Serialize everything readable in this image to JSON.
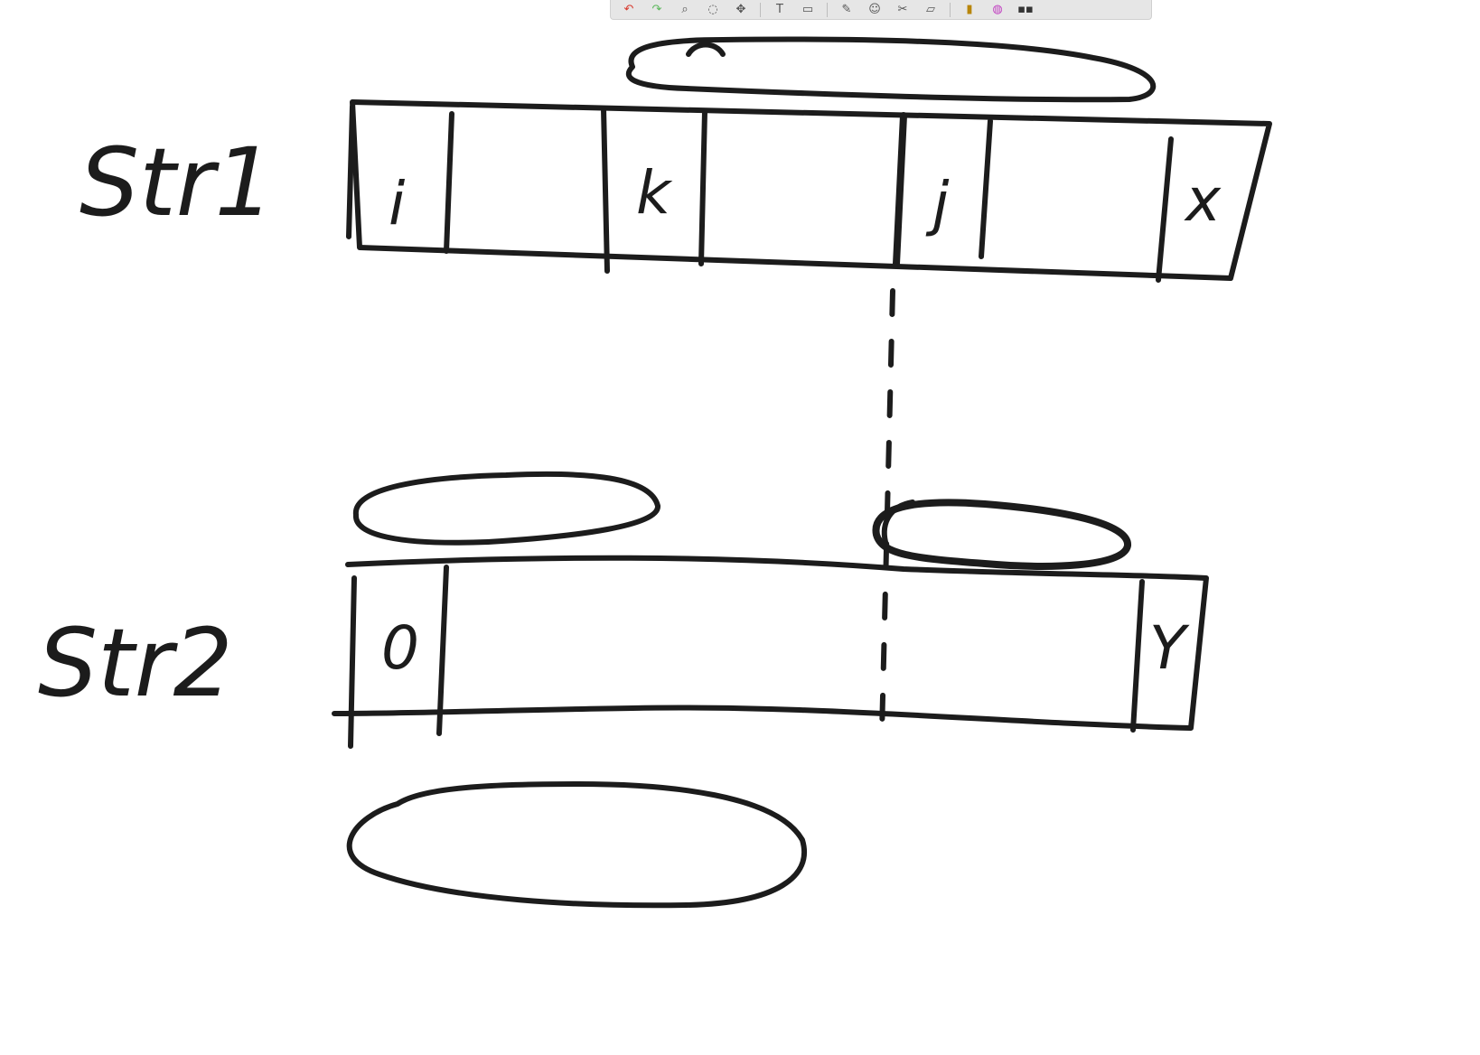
{
  "toolbar": {
    "tools": [
      {
        "name": "undo-icon",
        "glyph": "↶",
        "color": "#d83a2e"
      },
      {
        "name": "redo-icon",
        "glyph": "↷",
        "color": "#5cb85c"
      },
      {
        "name": "zoom-icon",
        "glyph": "⌕",
        "color": "#555555"
      },
      {
        "name": "lasso-icon",
        "glyph": "◌",
        "color": "#555555"
      },
      {
        "name": "move-icon",
        "glyph": "✥",
        "color": "#555555"
      },
      {
        "name": "text-tool-icon",
        "glyph": "T",
        "color": "#555555"
      },
      {
        "name": "shape-icon",
        "glyph": "▭",
        "color": "#555555"
      },
      {
        "name": "pen-icon",
        "glyph": "✎",
        "color": "#555555"
      },
      {
        "name": "emoji-icon",
        "glyph": "☺",
        "color": "#555555"
      },
      {
        "name": "scissors-icon",
        "glyph": "✂",
        "color": "#555555"
      },
      {
        "name": "eraser-icon",
        "glyph": "▱",
        "color": "#555555"
      },
      {
        "name": "highlighter-icon",
        "glyph": "▮",
        "color": "#b8860b"
      },
      {
        "name": "color-wheel-icon",
        "glyph": "◍",
        "color": "#c03cc0"
      },
      {
        "name": "stamps-icon",
        "glyph": "▪▪",
        "color": "#333333"
      }
    ]
  },
  "diagram": {
    "ink_color": "#1c1c1c",
    "row1": {
      "label": "Str1",
      "cells": [
        "i",
        "k",
        "j",
        "x"
      ]
    },
    "row2": {
      "label": "Str2",
      "cells": [
        "0",
        "Y"
      ]
    }
  }
}
